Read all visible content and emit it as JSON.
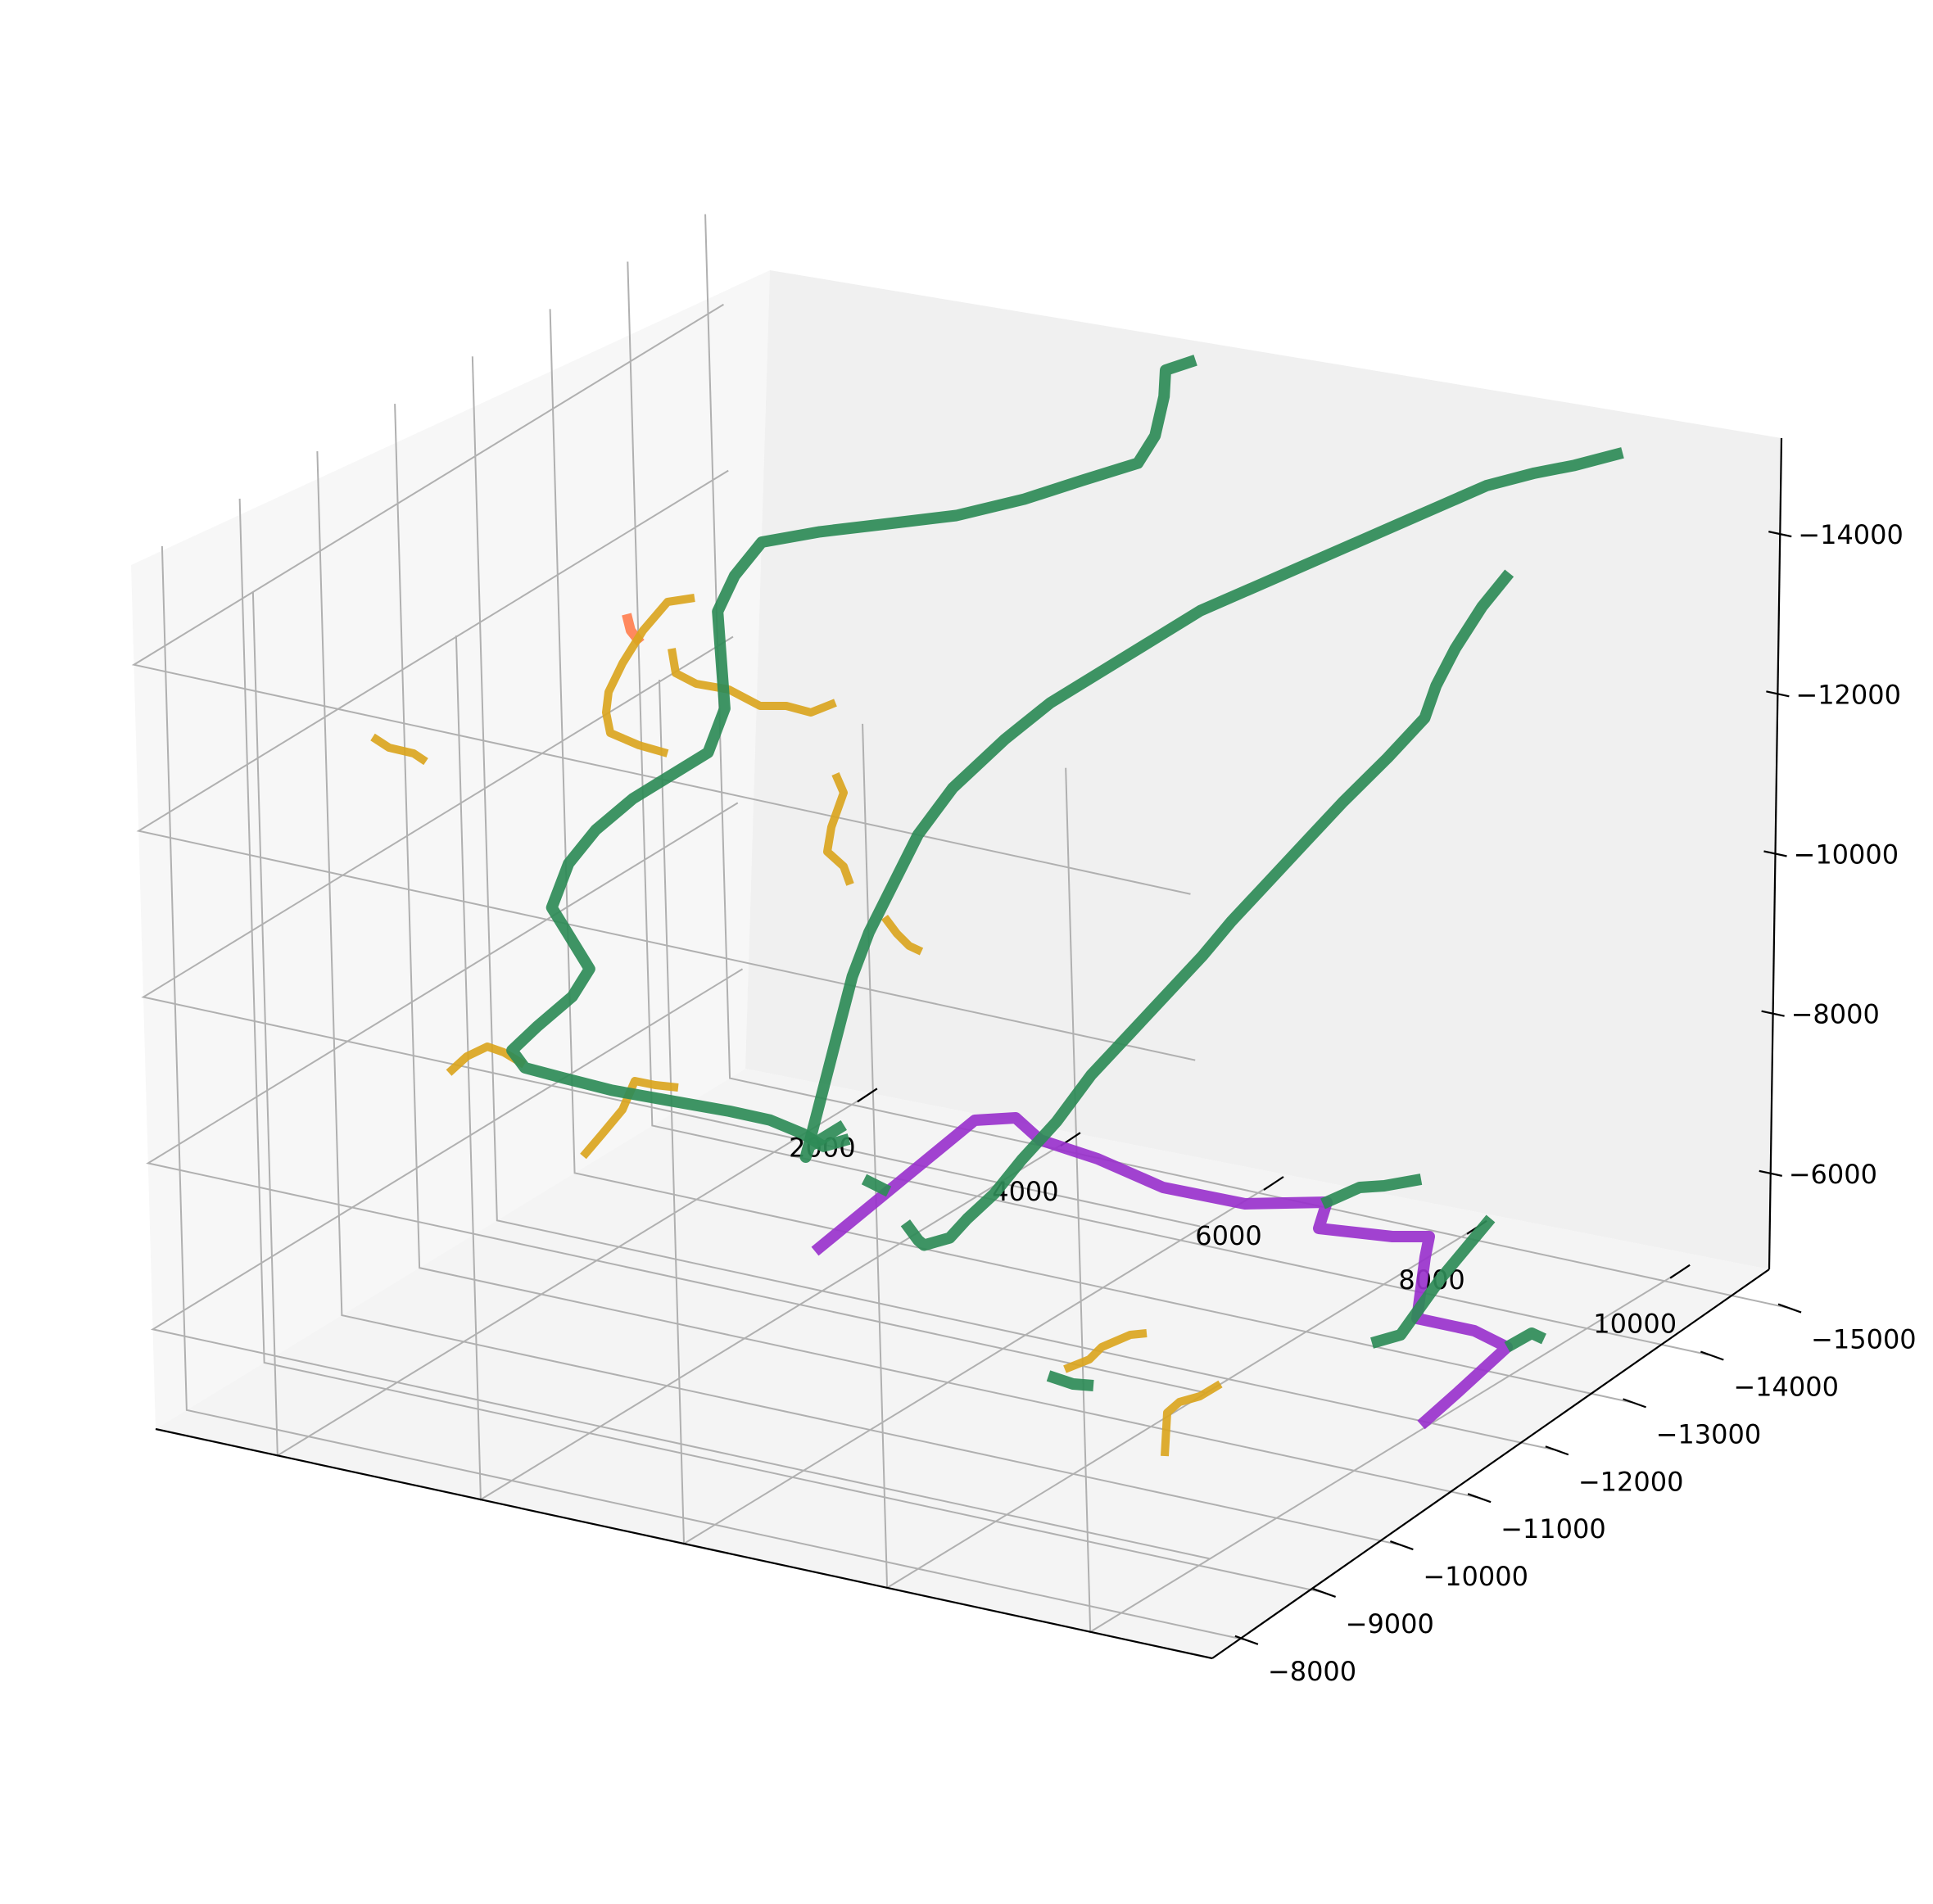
{
  "chart_data": {
    "type": "line3d",
    "title": "",
    "xlabel": "",
    "ylabel": "",
    "zlabel": "",
    "grid": true,
    "x_ticks": [
      2000,
      4000,
      6000,
      8000,
      10000
    ],
    "y_ticks": [
      -15000,
      -14000,
      -13000,
      -12000,
      -11000,
      -10000,
      -9000,
      -8000
    ],
    "z_ticks": [
      -6000,
      -8000,
      -10000,
      -12000,
      -14000
    ],
    "x_tick_labels": [
      "2000",
      "4000",
      "6000",
      "8000",
      "10000"
    ],
    "y_tick_labels": [
      "−15000",
      "−14000",
      "−13000",
      "−12000",
      "−11000",
      "−10000",
      "−9000",
      "−8000"
    ],
    "z_tick_labels": [
      "−6000",
      "−8000",
      "−10000",
      "−12000",
      "−14000"
    ],
    "xlim": [
      800,
      11200
    ],
    "ylim": [
      -15200,
      -7600
    ],
    "zlim": [
      -15200,
      -4800
    ],
    "z_inverted": true,
    "colors": {
      "seagreen": "#2e8b57",
      "goldenrod": "#daa520",
      "darkorchid": "#9932cc",
      "coral": "#ff7f50"
    },
    "series": [
      {
        "color": "#2e8b57",
        "width": 7,
        "points": [
          [
            9600,
            -13800,
            -13900
          ],
          [
            9400,
            -13700,
            -13500
          ],
          [
            9200,
            -13600,
            -13000
          ],
          [
            9000,
            -13600,
            -12500
          ],
          [
            8800,
            -13700,
            -12000
          ],
          [
            8500,
            -13600,
            -11500
          ],
          [
            8200,
            -13400,
            -11000
          ],
          [
            7900,
            -13300,
            -10500
          ],
          [
            7600,
            -13200,
            -10000
          ],
          [
            7300,
            -13100,
            -9500
          ],
          [
            7000,
            -13100,
            -9000
          ],
          [
            6700,
            -13000,
            -8500
          ],
          [
            6400,
            -12900,
            -8000
          ],
          [
            6100,
            -12800,
            -7500
          ],
          [
            5900,
            -12600,
            -7000
          ],
          [
            5700,
            -12400,
            -6600
          ],
          [
            5500,
            -12300,
            -6200
          ],
          [
            5300,
            -12200,
            -5900
          ],
          [
            5200,
            -12100,
            -5700
          ],
          [
            5100,
            -11900,
            -5700
          ],
          [
            5200,
            -11700,
            -5900
          ],
          [
            5000,
            -11800,
            -6000
          ]
        ]
      },
      {
        "color": "#2e8b57",
        "width": 7,
        "points": [
          [
            10600,
            -14000,
            -15500
          ],
          [
            10200,
            -13900,
            -15300
          ],
          [
            9800,
            -13900,
            -15100
          ],
          [
            9400,
            -13800,
            -14900
          ],
          [
            9000,
            -13700,
            -14600
          ],
          [
            8600,
            -13600,
            -14300
          ],
          [
            8200,
            -13500,
            -14000
          ],
          [
            7800,
            -13400,
            -13700
          ],
          [
            7400,
            -13300,
            -13400
          ],
          [
            7000,
            -13200,
            -13100
          ],
          [
            6600,
            -13100,
            -12700
          ],
          [
            6200,
            -12900,
            -12300
          ],
          [
            5800,
            -12800,
            -11900
          ],
          [
            5500,
            -12600,
            -11500
          ],
          [
            5200,
            -12300,
            -11000
          ],
          [
            5000,
            -12100,
            -10500
          ],
          [
            4900,
            -11900,
            -10000
          ],
          [
            4800,
            -11700,
            -9500
          ],
          [
            4700,
            -11600,
            -9000
          ],
          [
            4650,
            -11500,
            -8500
          ],
          [
            4600,
            -11400,
            -8000
          ],
          [
            4550,
            -11300,
            -7500
          ],
          [
            4500,
            -11200,
            -7000
          ],
          [
            4700,
            -11000,
            -7300
          ],
          [
            5200,
            -10800,
            -7800
          ]
        ]
      },
      {
        "color": "#2e8b57",
        "width": 7,
        "points": [
          [
            4700,
            -11500,
            -7100
          ],
          [
            4600,
            -11300,
            -7100
          ],
          [
            4400,
            -11300,
            -7200
          ],
          [
            4000,
            -11400,
            -7200
          ],
          [
            3600,
            -11400,
            -7200
          ],
          [
            3100,
            -11300,
            -7250
          ],
          [
            2600,
            -11200,
            -7300
          ],
          [
            2200,
            -11100,
            -7400
          ],
          [
            1900,
            -11000,
            -7500
          ],
          [
            1700,
            -11100,
            -7600
          ],
          [
            1800,
            -11300,
            -7800
          ],
          [
            2000,
            -11500,
            -8100
          ],
          [
            2100,
            -11600,
            -8400
          ],
          [
            2000,
            -11500,
            -8800
          ],
          [
            1900,
            -11400,
            -9200
          ],
          [
            2000,
            -11500,
            -9700
          ],
          [
            2200,
            -11600,
            -10100
          ],
          [
            2500,
            -11700,
            -10500
          ],
          [
            2800,
            -11800,
            -10800
          ],
          [
            3100,
            -11900,
            -11100
          ],
          [
            3200,
            -12000,
            -11600
          ],
          [
            3100,
            -12100,
            -12100
          ],
          [
            3000,
            -12200,
            -12600
          ],
          [
            3100,
            -12300,
            -13000
          ],
          [
            3300,
            -12400,
            -13400
          ],
          [
            3800,
            -12500,
            -13600
          ],
          [
            4400,
            -12600,
            -13800
          ],
          [
            5000,
            -12700,
            -14000
          ],
          [
            5600,
            -12800,
            -14300
          ],
          [
            6100,
            -12900,
            -14600
          ],
          [
            6500,
            -13100,
            -14800
          ],
          [
            6600,
            -13200,
            -15100
          ],
          [
            6700,
            -13200,
            -15600
          ],
          [
            6800,
            -13100,
            -16000
          ],
          [
            7100,
            -13100,
            -16200
          ]
        ]
      }
    ]
  }
}
